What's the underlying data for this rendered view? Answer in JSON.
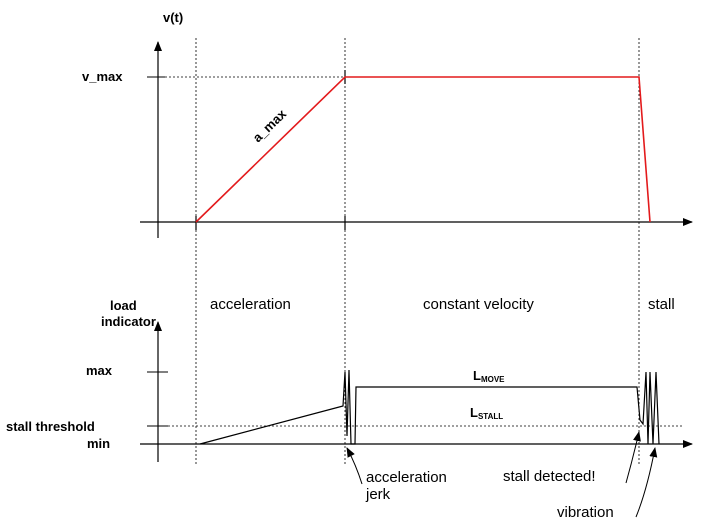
{
  "top_plot": {
    "y_axis_label": "v(t)",
    "v_max_label": "v_max",
    "slope_label": "a_max"
  },
  "bottom_plot": {
    "y_axis_label_line1": "load",
    "y_axis_label_line2": "indicator",
    "max_label": "max",
    "stall_threshold_label": "stall threshold",
    "min_label": "min",
    "l_move": {
      "main": "L",
      "sub": "MOVE"
    },
    "l_stall": {
      "main": "L",
      "sub": "STALL"
    }
  },
  "phases": {
    "acceleration": "acceleration",
    "constant_velocity": "constant velocity",
    "stall": "stall"
  },
  "annotations": {
    "accel_jerk_line1": "acceleration",
    "accel_jerk_line2": "jerk",
    "stall_detected": "stall detected!",
    "vibration": "vibration"
  },
  "colors": {
    "velocity_curve": "#e31a1c",
    "axes": "#000000"
  }
}
